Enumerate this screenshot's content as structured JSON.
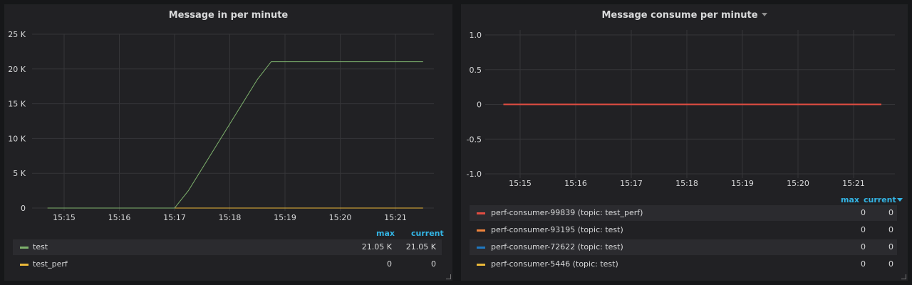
{
  "chart_data": [
    {
      "type": "line",
      "title": "Message in per minute",
      "xlabel": "",
      "ylabel": "",
      "ylim": [
        0,
        25000
      ],
      "yticks": [
        "0",
        "5 K",
        "10 K",
        "15 K",
        "20 K",
        "25 K"
      ],
      "xticks": [
        "15:15",
        "15:16",
        "15:17",
        "15:18",
        "15:19",
        "15:20",
        "15:21"
      ],
      "grid": true,
      "legend_position": "bottom",
      "legend_columns": [
        "max",
        "current"
      ],
      "series": [
        {
          "name": "test",
          "color": "#7eb26d",
          "x": [
            "15:14.7",
            "15:17",
            "15:17.25",
            "15:18.5",
            "15:18.75",
            "15:21.5"
          ],
          "y": [
            0,
            0,
            2500,
            18500,
            21050,
            21050
          ],
          "max": "21.05 K",
          "current": "21.05 K"
        },
        {
          "name": "test_perf",
          "color": "#eab839",
          "x": [
            "15:14.7",
            "15:21.5"
          ],
          "y": [
            0,
            0
          ],
          "max": "0",
          "current": "0"
        }
      ]
    },
    {
      "type": "line",
      "title": "Message consume per minute",
      "xlabel": "",
      "ylabel": "",
      "ylim": [
        -1.0,
        1.0
      ],
      "yticks": [
        "-1.0",
        "-0.5",
        "0",
        "0.5",
        "1.0"
      ],
      "xticks": [
        "15:15",
        "15:16",
        "15:17",
        "15:18",
        "15:19",
        "15:20",
        "15:21"
      ],
      "grid": true,
      "legend_position": "bottom",
      "legend_columns": [
        "max",
        "current"
      ],
      "series": [
        {
          "name": "perf-consumer-99839 (topic: test_perf)",
          "color": "#e24d42",
          "x": [
            "15:14.7",
            "15:21.5"
          ],
          "y": [
            0,
            0
          ],
          "max": "0",
          "current": "0"
        },
        {
          "name": "perf-consumer-93195 (topic: test)",
          "color": "#ef843c",
          "x": [
            "15:14.7",
            "15:21.5"
          ],
          "y": [
            0,
            0
          ],
          "max": "0",
          "current": "0"
        },
        {
          "name": "perf-consumer-72622 (topic: test)",
          "color": "#1f78c1",
          "x": [
            "15:14.7",
            "15:21.5"
          ],
          "y": [
            0,
            0
          ],
          "max": "0",
          "current": "0"
        },
        {
          "name": "perf-consumer-5446 (topic: test)",
          "color": "#eab839",
          "x": [
            "15:14.7",
            "15:21.5"
          ],
          "y": [
            0,
            0
          ],
          "max": "0",
          "current": "0"
        }
      ]
    }
  ]
}
